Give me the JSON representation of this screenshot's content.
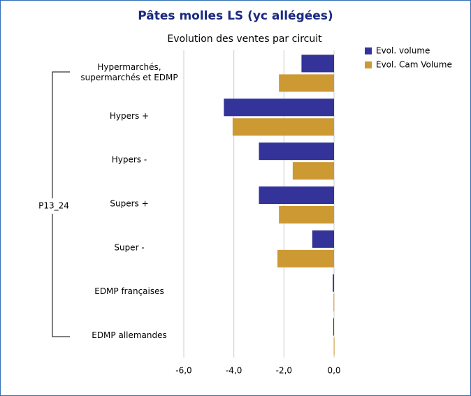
{
  "chart_data": {
    "type": "barh",
    "title": "Pâtes molles LS (yc allégées)",
    "subtitle": "Evolution des ventes par circuit",
    "group_label": "P13_24",
    "categories": [
      "Hypermarchés,\nsupermarchés et EDMP",
      "Hypers +",
      "Hypers -",
      "Supers +",
      "Super -",
      "EDMP françaises",
      "EDMP allemandes"
    ],
    "series": [
      {
        "name": "Evol. volume",
        "color": "#333399",
        "values": [
          -1.3,
          -4.4,
          -3.0,
          -3.0,
          -0.87,
          -0.05,
          -0.03
        ]
      },
      {
        "name": "Evol. Cam Volume",
        "color": "#cc9933",
        "values": [
          -2.2,
          -4.05,
          -1.65,
          -2.2,
          -2.26,
          -0.02,
          -0.01
        ]
      }
    ],
    "xlim": [
      -6,
      0
    ],
    "xticks": [
      {
        "value": -6,
        "label": "-6,0"
      },
      {
        "value": -4,
        "label": "-4,0"
      },
      {
        "value": -2,
        "label": "-2,0"
      },
      {
        "value": 0,
        "label": "0,0"
      }
    ],
    "grid": true,
    "legend": "top-right"
  }
}
